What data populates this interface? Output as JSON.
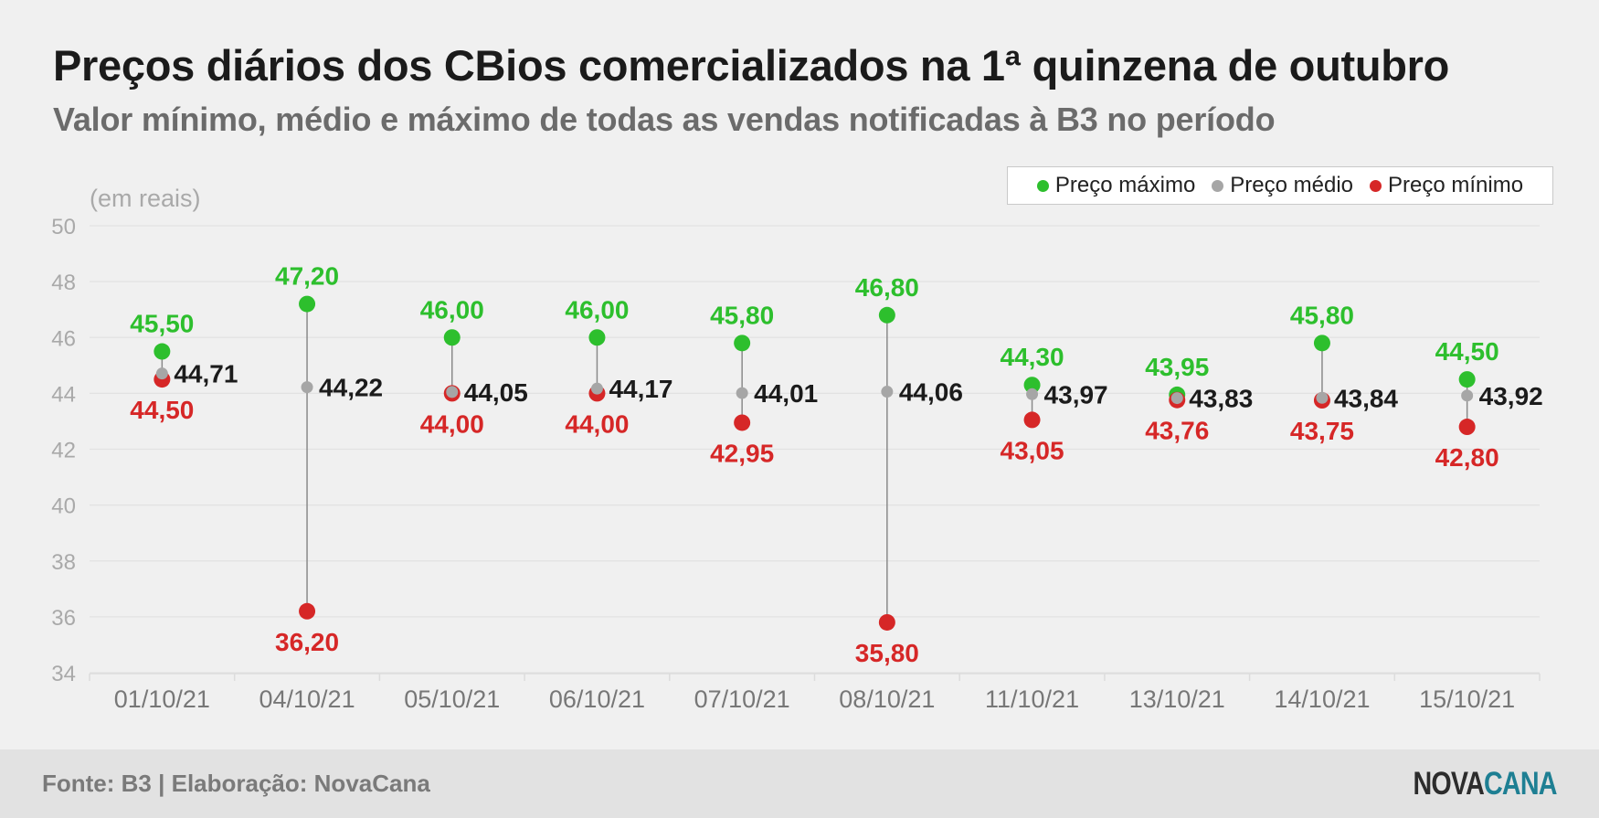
{
  "header": {
    "title": "Preços diários dos CBios comercializados na 1ª quinzena de outubro",
    "subtitle": "Valor mínimo, médio e máximo de todas as vendas notificadas à B3 no período"
  },
  "footer": {
    "source": "Fonte: B3 | Elaboração: NovaCana",
    "logo_part1": "NOVA",
    "logo_part2": "CANA"
  },
  "colors": {
    "max": "#2dbf2d",
    "avg": "#a6a6a6",
    "min": "#d62727",
    "avg_label": "#1b1b1b",
    "axis_text": "#a9a9a9",
    "gridline": "#e2e2e2"
  },
  "chart_data": {
    "type": "scatter",
    "ylabel": "(em reais)",
    "ylim": [
      34,
      50
    ],
    "yticks": [
      "34",
      "36",
      "38",
      "40",
      "42",
      "44",
      "46",
      "48",
      "50"
    ],
    "grid": true,
    "legend_position": "top-right",
    "categories": [
      "01/10/21",
      "04/10/21",
      "05/10/21",
      "06/10/21",
      "07/10/21",
      "08/10/21",
      "11/10/21",
      "13/10/21",
      "14/10/21",
      "15/10/21"
    ],
    "series": [
      {
        "name": "Preço máximo",
        "key": "max",
        "values": [
          45.5,
          47.2,
          46.0,
          46.0,
          45.8,
          46.8,
          44.3,
          43.95,
          45.8,
          44.5
        ],
        "labels": [
          "45,50",
          "47,20",
          "46,00",
          "46,00",
          "45,80",
          "46,80",
          "44,30",
          "43,95",
          "45,80",
          "44,50"
        ]
      },
      {
        "name": "Preço médio",
        "key": "avg",
        "values": [
          44.71,
          44.22,
          44.05,
          44.17,
          44.01,
          44.06,
          43.97,
          43.83,
          43.84,
          43.92
        ],
        "labels": [
          "44,71",
          "44,22",
          "44,05",
          "44,17",
          "44,01",
          "44,06",
          "43,97",
          "43,83",
          "43,84",
          "43,92"
        ]
      },
      {
        "name": "Preço mínimo",
        "key": "min",
        "values": [
          44.5,
          36.2,
          44.0,
          44.0,
          42.95,
          35.8,
          43.05,
          43.76,
          43.75,
          42.8
        ],
        "labels": [
          "44,50",
          "36,20",
          "44,00",
          "44,00",
          "42,95",
          "35,80",
          "43,05",
          "43,76",
          "43,75",
          "42,80"
        ]
      }
    ]
  }
}
